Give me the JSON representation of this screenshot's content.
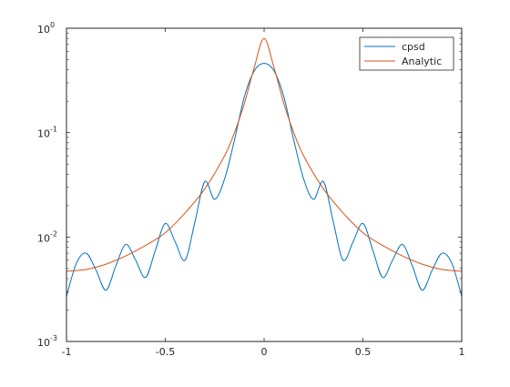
{
  "chart_data": {
    "type": "line",
    "title": "",
    "xlabel": "",
    "ylabel": "",
    "xlim": [
      -1,
      1
    ],
    "ylim": [
      0.001,
      1
    ],
    "yscale": "log",
    "grid": false,
    "legend_position": "top-right",
    "x_ticks": [
      {
        "value": -1,
        "label": "-1"
      },
      {
        "value": -0.5,
        "label": "-0.5"
      },
      {
        "value": 0,
        "label": "0"
      },
      {
        "value": 0.5,
        "label": "0.5"
      },
      {
        "value": 1,
        "label": "1"
      }
    ],
    "y_ticks": [
      {
        "value": 0.001,
        "base": "10",
        "exp": "-3"
      },
      {
        "value": 0.01,
        "base": "10",
        "exp": "-2"
      },
      {
        "value": 0.1,
        "base": "10",
        "exp": "-1"
      },
      {
        "value": 1,
        "base": "10",
        "exp": "0"
      }
    ],
    "series": [
      {
        "name": "cpsd",
        "color": "#0072BD",
        "x": [
          -1.0,
          -0.95,
          -0.9,
          -0.85,
          -0.8,
          -0.75,
          -0.7,
          -0.65,
          -0.6,
          -0.55,
          -0.5,
          -0.45,
          -0.4,
          -0.35,
          -0.3,
          -0.25,
          -0.2,
          -0.15,
          -0.1,
          -0.05,
          0.0,
          0.05,
          0.1,
          0.15,
          0.2,
          0.25,
          0.3,
          0.35,
          0.4,
          0.45,
          0.5,
          0.55,
          0.6,
          0.65,
          0.7,
          0.75,
          0.8,
          0.85,
          0.9,
          0.95,
          1.0
        ],
        "y": [
          0.0027,
          0.0056,
          0.007,
          0.0048,
          0.0031,
          0.0053,
          0.0085,
          0.006,
          0.0041,
          0.0075,
          0.0135,
          0.009,
          0.006,
          0.014,
          0.034,
          0.023,
          0.036,
          0.085,
          0.22,
          0.39,
          0.46,
          0.39,
          0.22,
          0.085,
          0.036,
          0.023,
          0.034,
          0.014,
          0.006,
          0.009,
          0.0135,
          0.0075,
          0.0041,
          0.006,
          0.0085,
          0.0053,
          0.0031,
          0.0048,
          0.007,
          0.0056,
          0.0027
        ]
      },
      {
        "name": "Analytic",
        "color": "#D95319",
        "x": [
          -1.0,
          -0.9,
          -0.8,
          -0.7,
          -0.6,
          -0.5,
          -0.4,
          -0.3,
          -0.2,
          -0.15,
          -0.1,
          -0.05,
          0.0,
          0.05,
          0.1,
          0.15,
          0.2,
          0.3,
          0.4,
          0.5,
          0.6,
          0.7,
          0.8,
          0.9,
          1.0
        ],
        "y": [
          0.0047,
          0.0049,
          0.0055,
          0.0066,
          0.0083,
          0.011,
          0.017,
          0.029,
          0.06,
          0.1,
          0.19,
          0.42,
          0.8,
          0.42,
          0.19,
          0.1,
          0.06,
          0.029,
          0.017,
          0.011,
          0.0083,
          0.0066,
          0.0055,
          0.0049,
          0.0047
        ]
      }
    ]
  }
}
